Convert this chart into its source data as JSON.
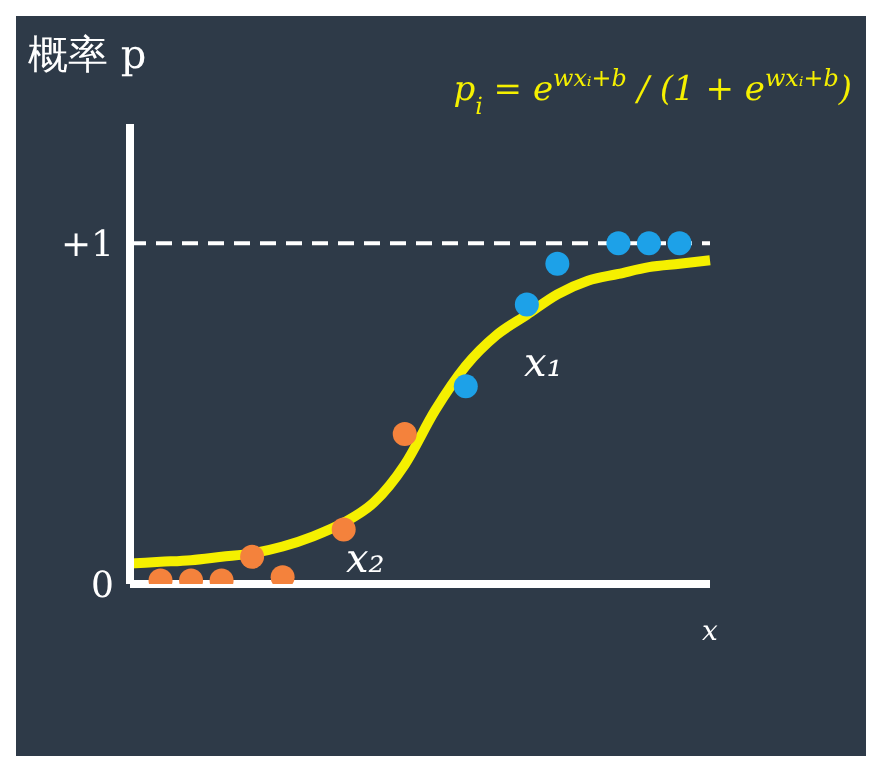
{
  "chart_data": {
    "type": "scatter",
    "ylabel": "概率 p",
    "xlabel": "x",
    "annotations": [
      "p$_{i}$ = e$^{wxᵢ+b}$ / (1 + e$^{wxᵢ+b}$)",
      "x₁",
      "x₂"
    ],
    "categories": [
      null,
      null,
      null,
      null,
      null,
      null,
      null,
      null,
      null,
      null,
      null,
      null,
      null,
      null,
      null,
      null,
      null,
      null,
      null,
      null
    ],
    "ylim": [
      0,
      1.35
    ],
    "yticks": [
      0,
      {
        "value": 1,
        "label": "+1"
      }
    ],
    "tick_labels": "y",
    "marker": "circle",
    "ref_lines": [
      {
        "axis": "y",
        "value": 1,
        "color": "#ffffff",
        "line_style": "dashed"
      }
    ],
    "series": [
      {
        "color": "#f4823c",
        "values": [
          null,
          0.01,
          0.01,
          0.01,
          0.08,
          0.02,
          null,
          0.16,
          null,
          0.44,
          null,
          null,
          null,
          null,
          null,
          null,
          null,
          null,
          null,
          null
        ]
      },
      {
        "color": "#1da1e8",
        "values": [
          null,
          null,
          null,
          null,
          null,
          null,
          null,
          null,
          null,
          null,
          null,
          0.58,
          null,
          0.82,
          0.94,
          null,
          1,
          1,
          1,
          null
        ]
      },
      {
        "type": "line",
        "color": "#f5f000",
        "marker": "none",
        "values": [
          0.06,
          0.065,
          0.07,
          0.08,
          0.09,
          0.11,
          0.14,
          0.18,
          0.24,
          0.35,
          0.51,
          0.64,
          0.73,
          0.79,
          0.85,
          0.89,
          0.91,
          0.93,
          0.94,
          0.95
        ]
      }
    ]
  }
}
